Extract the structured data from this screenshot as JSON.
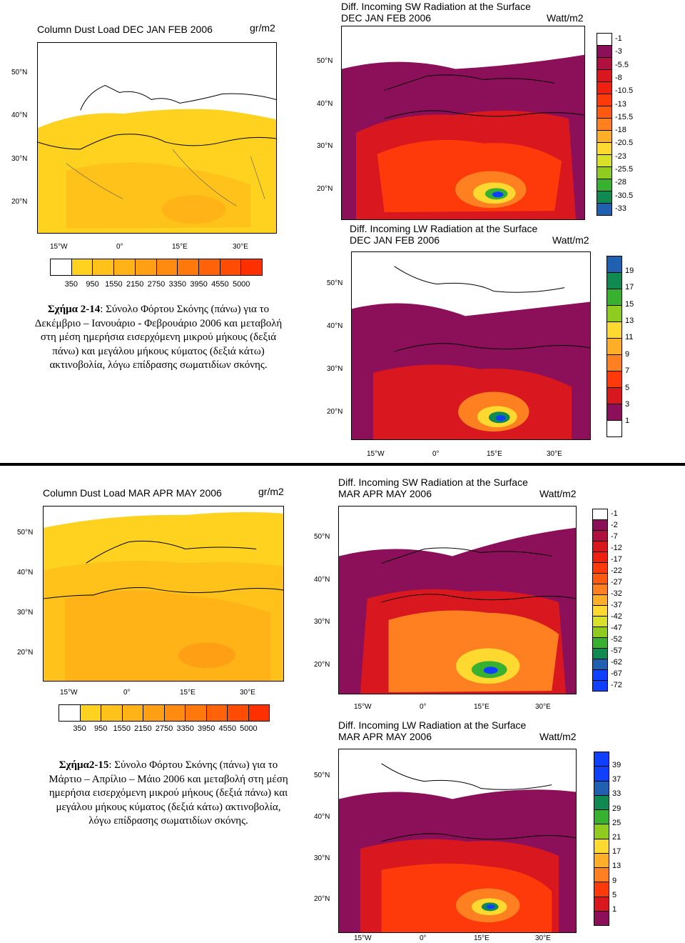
{
  "fig1": {
    "dust": {
      "title": "Column Dust Load   DEC JAN FEB  2006",
      "unit": "gr/m2",
      "lat": [
        "50°N",
        "40°N",
        "30°N",
        "20°N"
      ],
      "lon": [
        "15°W",
        "0°",
        "15°E",
        "30°E"
      ],
      "scale": [
        "350",
        "950",
        "1550",
        "2150",
        "2750",
        "3350",
        "3950",
        "4550",
        "5000"
      ]
    },
    "sw": {
      "title1": "Diff. Incoming SW Radiation at the Surface",
      "title2": "DEC JAN FEB 2006",
      "unit": "Watt/m2",
      "lat": [
        "50°N",
        "40°N",
        "30°N",
        "20°N"
      ],
      "scale": [
        "-1",
        "-3",
        "-5.5",
        "-8",
        "-10.5",
        "-13",
        "-15.5",
        "-18",
        "-20.5",
        "-23",
        "-25.5",
        "-28",
        "-30.5",
        "-33"
      ]
    },
    "lw": {
      "title1": "Diff. Incoming LW Radiation at the Surface",
      "title2": "DEC JAN FEB 2006",
      "unit": "Watt/m2",
      "lat": [
        "50°N",
        "40°N",
        "30°N",
        "20°N"
      ],
      "lon": [
        "15°W",
        "0°",
        "15°E",
        "30°E"
      ],
      "scale": [
        "19",
        "17",
        "15",
        "13",
        "11",
        "9",
        "7",
        "5",
        "3",
        "1"
      ]
    },
    "caption": {
      "label": "Σχήμα 2-14",
      "text": ": Σύνολο Φόρτου Σκόνης (πάνω) για το Δεκέμβριο – Ιανουάριο - Φεβρουάριο 2006 και μεταβολή στη μέση ημερήσια εισερχόμενη μικρού μήκους (δεξιά πάνω) και μεγάλου μήκους κύματος (δεξιά κάτω) ακτινοβολία, λόγω επίδρασης σωματιδίων σκόνης."
    }
  },
  "fig2": {
    "dust": {
      "title": "Column Dust Load   MAR APR MAY  2006",
      "unit": "gr/m2",
      "lat": [
        "50°N",
        "40°N",
        "30°N",
        "20°N"
      ],
      "lon": [
        "15°W",
        "0°",
        "15°E",
        "30°E"
      ],
      "scale": [
        "350",
        "950",
        "1550",
        "2150",
        "2750",
        "3350",
        "3950",
        "4550",
        "5000"
      ]
    },
    "sw": {
      "title1": "Diff. Incoming SW Radiation at the Surface",
      "title2": "MAR APR MAY 2006",
      "unit": "Watt/m2",
      "lat": [
        "50°N",
        "40°N",
        "30°N",
        "20°N"
      ],
      "lon": [
        "15°W",
        "0°",
        "15°E",
        "30°E"
      ],
      "scale": [
        "-1",
        "-2",
        "-7",
        "-12",
        "-17",
        "-22",
        "-27",
        "-32",
        "-37",
        "-42",
        "-47",
        "-52",
        "-57",
        "-62",
        "-67",
        "-72"
      ]
    },
    "lw": {
      "title1": "Diff. Incoming LW Radiation at the Surface",
      "title2": "MAR APR MAY 2006",
      "unit": "Watt/m2",
      "lat": [
        "50°N",
        "40°N",
        "30°N",
        "20°N"
      ],
      "lon": [
        "15°W",
        "0°",
        "15°E",
        "30°E"
      ],
      "scale": [
        "39",
        "37",
        "33",
        "29",
        "25",
        "21",
        "17",
        "13",
        "9",
        "5",
        "1"
      ]
    },
    "caption": {
      "label": "Σχήμα2-15",
      "text": ": Σύνολο Φόρτου Σκόνης (πάνω) για το Μάρτιο – Απρίλιο – Μάιο 2006 και μεταβολή στη μέση ημερήσια εισερχόμενη μικρού μήκους (δεξιά πάνω) και μεγάλου μήκους κύματος (δεξιά κάτω) ακτινοβολία, λόγω επίδρασης σωματιδίων σκόνης."
    }
  },
  "colors": {
    "dust": [
      "#ffffff",
      "#ffd21f",
      "#ffc21a",
      "#ffb317",
      "#ffa014",
      "#ff8c10",
      "#ff780c",
      "#ff6208",
      "#ff4c04",
      "#ff3000"
    ],
    "sw": [
      "#ffffff",
      "#8c0f5a",
      "#b01040",
      "#d8181e",
      "#f02010",
      "#ff3a0a",
      "#ff5a10",
      "#ff8020",
      "#ffae28",
      "#ffd830",
      "#d8e028",
      "#90cc20",
      "#38b030",
      "#108a50",
      "#2060b0",
      "#1040ff"
    ],
    "lw": [
      "#1040ff",
      "#2060b0",
      "#108a50",
      "#38b030",
      "#90cc20",
      "#ffd830",
      "#ffae28",
      "#ff8020",
      "#ff3a0a",
      "#d8181e",
      "#8c0f5a",
      "#ffffff"
    ]
  }
}
